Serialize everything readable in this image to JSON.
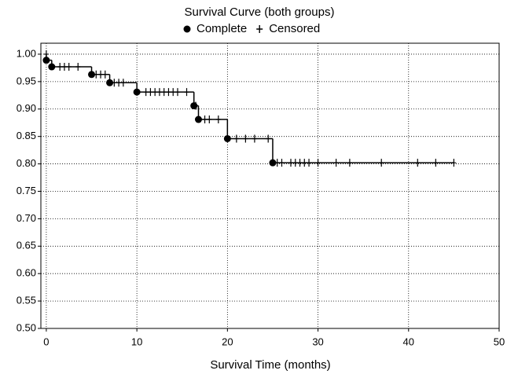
{
  "chart_data": {
    "type": "survival",
    "title": "Survival Curve (both groups)",
    "x_label": "Survival Time (months)",
    "xlim": [
      -0.6,
      50
    ],
    "ylim": [
      0.5,
      1.02
    ],
    "xticks": [
      0,
      10,
      20,
      30,
      40,
      50
    ],
    "yticks": [
      {
        "value": 0.5,
        "label": "0.50"
      },
      {
        "value": 0.55,
        "label": "0.55"
      },
      {
        "value": 0.6,
        "label": "0.60"
      },
      {
        "value": 0.65,
        "label": "0.65"
      },
      {
        "value": 0.7,
        "label": "0.70"
      },
      {
        "value": 0.75,
        "label": "0.75"
      },
      {
        "value": 0.8,
        "label": "0.80"
      },
      {
        "value": 0.85,
        "label": "0.85"
      },
      {
        "value": 0.9,
        "label": "0.90"
      },
      {
        "value": 0.95,
        "label": "0.95"
      },
      {
        "value": 1.0,
        "label": "1.00"
      }
    ],
    "grid": true,
    "color": "#000000",
    "series": [
      {
        "name": "Complete",
        "marker": "circle",
        "x": [
          0,
          0.6,
          5,
          7,
          10,
          16.3,
          16.8,
          20,
          25
        ],
        "y": [
          0.989,
          0.977,
          0.963,
          0.948,
          0.931,
          0.906,
          0.881,
          0.846,
          0.802
        ]
      },
      {
        "name": "Censored",
        "marker": "plus",
        "x": [
          0,
          1.5,
          2,
          2.5,
          3.5,
          5.5,
          6,
          6.5,
          7.5,
          8,
          8.5,
          11,
          11.5,
          12,
          12.5,
          13,
          13.5,
          14,
          14.5,
          15.5,
          16.5,
          17.5,
          18,
          19,
          21,
          22,
          23,
          24.5,
          25.5,
          26,
          27,
          27.5,
          28,
          28.5,
          29,
          30,
          32,
          33.5,
          37,
          41,
          43,
          45
        ],
        "y": [
          1.0,
          0.977,
          0.977,
          0.977,
          0.977,
          0.963,
          0.963,
          0.963,
          0.948,
          0.948,
          0.948,
          0.931,
          0.931,
          0.931,
          0.931,
          0.931,
          0.931,
          0.931,
          0.931,
          0.931,
          0.906,
          0.881,
          0.881,
          0.881,
          0.846,
          0.846,
          0.846,
          0.846,
          0.802,
          0.802,
          0.802,
          0.802,
          0.802,
          0.802,
          0.802,
          0.802,
          0.802,
          0.802,
          0.802,
          0.802,
          0.802,
          0.802
        ]
      }
    ]
  }
}
